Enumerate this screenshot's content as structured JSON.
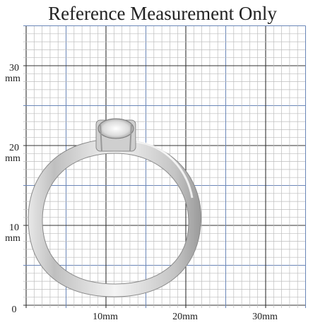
{
  "title": "Reference Measurement Only",
  "y_labels": [
    {
      "number": "30",
      "unit": "mm"
    },
    {
      "number": "20",
      "unit": "mm"
    },
    {
      "number": "10",
      "unit": "mm"
    },
    {
      "number": "0"
    }
  ],
  "x_labels": [
    "10mm",
    "20mm",
    "30mm"
  ]
}
